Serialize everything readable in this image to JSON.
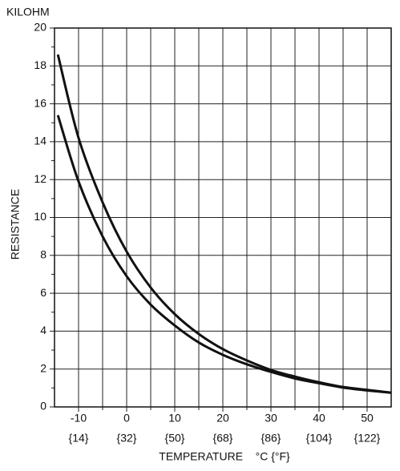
{
  "chart_data": {
    "type": "line",
    "ylabel_top": "KILOHM",
    "ylabel": "RESISTANCE",
    "xlabel": "TEMPERATURE    °C {°F}",
    "x": [
      -14.3,
      -10,
      -5,
      0,
      5,
      10,
      15,
      20,
      25,
      30,
      35,
      40,
      45,
      50,
      55
    ],
    "series": [
      {
        "color": "#111111",
        "values": [
          18.6,
          14.2,
          10.8,
          8.2,
          6.3,
          4.9,
          3.85,
          3.05,
          2.45,
          1.95,
          1.6,
          1.3,
          1.05,
          0.9,
          0.75
        ]
      },
      {
        "color": "#111111",
        "values": [
          15.4,
          11.9,
          9.0,
          6.9,
          5.4,
          4.3,
          3.4,
          2.75,
          2.25,
          1.85,
          1.5,
          1.25,
          1.02,
          0.87,
          0.75
        ]
      }
    ],
    "xlim": [
      -15,
      55
    ],
    "ylim": [
      0,
      20
    ],
    "xticks": [
      -10,
      0,
      10,
      20,
      30,
      40,
      50
    ],
    "xticks_secondary": [
      "{14}",
      "{32}",
      "{50}",
      "{68}",
      "{86}",
      "{104}",
      "{122}"
    ],
    "xminor_ticks": [
      -5,
      5,
      15,
      25,
      35,
      45
    ],
    "yticks": [
      0,
      2,
      4,
      6,
      8,
      10,
      12,
      14,
      16,
      18,
      20
    ],
    "yminor_ticks": [
      1,
      3,
      5,
      7,
      9,
      11,
      13,
      15,
      17,
      19
    ],
    "grid": true
  }
}
